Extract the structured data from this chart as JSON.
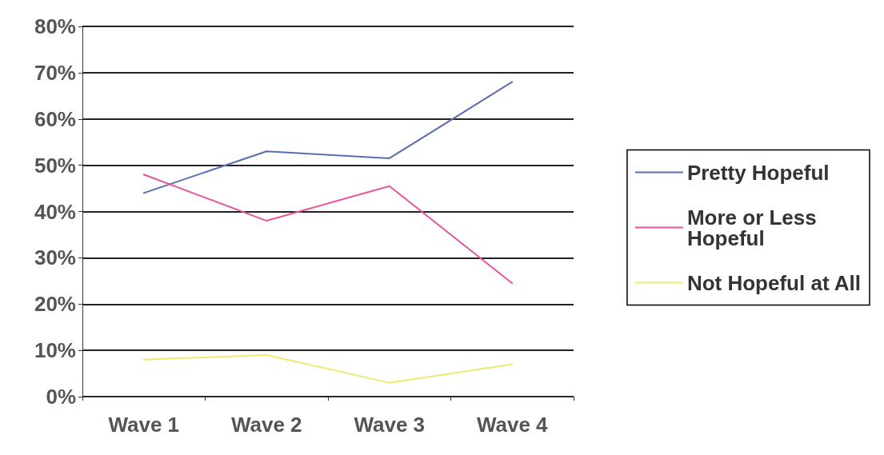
{
  "chart_data": {
    "type": "line",
    "categories": [
      "Wave 1",
      "Wave 2",
      "Wave 3",
      "Wave 4"
    ],
    "series": [
      {
        "name": "Pretty Hopeful",
        "color": "#5b6db0",
        "values": [
          44,
          53,
          51.5,
          68
        ]
      },
      {
        "name": "More or Less Hopeful",
        "color": "#e8559c",
        "values": [
          48,
          38,
          45.5,
          24.5
        ]
      },
      {
        "name": "Not Hopeful at All",
        "color": "#eeea6a",
        "values": [
          8,
          9,
          3,
          7
        ]
      }
    ],
    "ylim": [
      0,
      80
    ],
    "yticks": [
      {
        "value": 0,
        "label": "0%"
      },
      {
        "value": 10,
        "label": "10%"
      },
      {
        "value": 20,
        "label": "20%"
      },
      {
        "value": 30,
        "label": "30%"
      },
      {
        "value": 40,
        "label": "40%"
      },
      {
        "value": 50,
        "label": "50%"
      },
      {
        "value": 60,
        "label": "60%"
      },
      {
        "value": 70,
        "label": "70%"
      },
      {
        "value": 80,
        "label": "80%"
      }
    ],
    "grid": "y",
    "legend": "right",
    "marker": "none",
    "line_style": "solid"
  }
}
